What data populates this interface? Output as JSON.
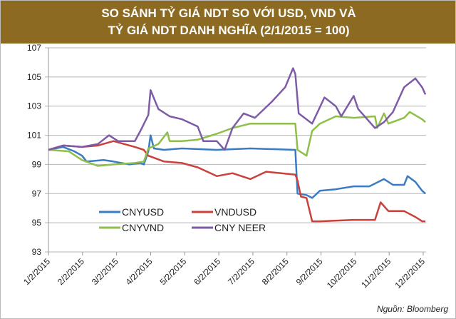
{
  "title_line1": "SO SÁNH TỶ GIÁ NDT SO VỚI USD, VND VÀ",
  "title_line2": "TỶ GIÁ NDT DANH NGHĨA (2/1/2015 = 100)",
  "source": "Nguồn: Bloomberg",
  "chart_data": {
    "type": "line",
    "ylim": [
      93,
      107
    ],
    "yticks": [
      "93",
      "95",
      "97",
      "99",
      "101",
      "103",
      "105",
      "107"
    ],
    "xlim": [
      "2015-01-02",
      "2015-12-04"
    ],
    "xtick_labels": [
      "1/2/2015",
      "2/2/2015",
      "3/2/2015",
      "4/2/2015",
      "5/2/2015",
      "6/2/2015",
      "7/2/2015",
      "8/2/2015",
      "9/2/2015",
      "10/2/2015",
      "11/2/2015",
      "12/2/2015"
    ],
    "grid": true,
    "legend_position": "bottom-left",
    "series": [
      {
        "name": "CNYUSD",
        "color": "#3a7cc4",
        "points": [
          [
            "2015-01-02",
            100
          ],
          [
            "2015-01-15",
            100.2
          ],
          [
            "2015-01-25",
            99.9
          ],
          [
            "2015-02-01",
            99.6
          ],
          [
            "2015-02-05",
            99.2
          ],
          [
            "2015-02-20",
            99.3
          ],
          [
            "2015-03-01",
            99.2
          ],
          [
            "2015-03-15",
            99.0
          ],
          [
            "2015-03-25",
            99.1
          ],
          [
            "2015-03-28",
            99.0
          ],
          [
            "2015-04-01",
            99.9
          ],
          [
            "2015-04-03",
            101.0
          ],
          [
            "2015-04-06",
            100.1
          ],
          [
            "2015-04-15",
            100.0
          ],
          [
            "2015-05-01",
            100.1
          ],
          [
            "2015-06-01",
            100.0
          ],
          [
            "2015-07-01",
            100.1
          ],
          [
            "2015-08-10",
            100.0
          ],
          [
            "2015-08-12",
            97.0
          ],
          [
            "2015-08-20",
            96.9
          ],
          [
            "2015-08-25",
            96.7
          ],
          [
            "2015-09-01",
            97.2
          ],
          [
            "2015-09-15",
            97.3
          ],
          [
            "2015-10-01",
            97.5
          ],
          [
            "2015-10-15",
            97.5
          ],
          [
            "2015-10-28",
            98.0
          ],
          [
            "2015-11-05",
            97.6
          ],
          [
            "2015-11-15",
            97.6
          ],
          [
            "2015-11-18",
            98.2
          ],
          [
            "2015-11-25",
            97.8
          ],
          [
            "2015-12-01",
            97.2
          ],
          [
            "2015-12-04",
            97.0
          ]
        ]
      },
      {
        "name": "VNDUSD",
        "color": "#c9413a",
        "points": [
          [
            "2015-01-02",
            100
          ],
          [
            "2015-01-15",
            100.3
          ],
          [
            "2015-02-01",
            100.2
          ],
          [
            "2015-02-15",
            100.3
          ],
          [
            "2015-03-01",
            100.6
          ],
          [
            "2015-03-20",
            100.2
          ],
          [
            "2015-03-28",
            100.0
          ],
          [
            "2015-04-01",
            99.6
          ],
          [
            "2015-04-15",
            99.2
          ],
          [
            "2015-05-01",
            99.1
          ],
          [
            "2015-05-15",
            98.8
          ],
          [
            "2015-06-01",
            98.2
          ],
          [
            "2015-06-15",
            98.4
          ],
          [
            "2015-07-01",
            98.0
          ],
          [
            "2015-07-15",
            98.5
          ],
          [
            "2015-08-10",
            98.3
          ],
          [
            "2015-08-12",
            97.9
          ],
          [
            "2015-08-15",
            96.8
          ],
          [
            "2015-08-20",
            96.7
          ],
          [
            "2015-08-25",
            95.1
          ],
          [
            "2015-09-01",
            95.1
          ],
          [
            "2015-10-01",
            95.2
          ],
          [
            "2015-10-20",
            95.2
          ],
          [
            "2015-10-25",
            96.4
          ],
          [
            "2015-11-01",
            95.8
          ],
          [
            "2015-11-15",
            95.8
          ],
          [
            "2015-11-25",
            95.4
          ],
          [
            "2015-12-01",
            95.1
          ],
          [
            "2015-12-04",
            95.1
          ]
        ]
      },
      {
        "name": "CNYVND",
        "color": "#8fbf4a",
        "points": [
          [
            "2015-01-02",
            100
          ],
          [
            "2015-01-20",
            99.9
          ],
          [
            "2015-02-01",
            99.3
          ],
          [
            "2015-02-15",
            98.9
          ],
          [
            "2015-03-01",
            99.0
          ],
          [
            "2015-03-20",
            99.1
          ],
          [
            "2015-03-28",
            99.2
          ],
          [
            "2015-04-01",
            100.1
          ],
          [
            "2015-04-10",
            100.4
          ],
          [
            "2015-04-18",
            101.2
          ],
          [
            "2015-04-20",
            100.6
          ],
          [
            "2015-05-01",
            100.6
          ],
          [
            "2015-05-15",
            100.7
          ],
          [
            "2015-06-01",
            101.1
          ],
          [
            "2015-06-15",
            101.5
          ],
          [
            "2015-07-01",
            101.8
          ],
          [
            "2015-07-15",
            101.8
          ],
          [
            "2015-08-10",
            101.8
          ],
          [
            "2015-08-12",
            100.0
          ],
          [
            "2015-08-20",
            99.6
          ],
          [
            "2015-08-25",
            101.3
          ],
          [
            "2015-09-01",
            101.8
          ],
          [
            "2015-09-15",
            102.3
          ],
          [
            "2015-10-01",
            102.2
          ],
          [
            "2015-10-20",
            102.3
          ],
          [
            "2015-10-22",
            101.5
          ],
          [
            "2015-10-28",
            102.5
          ],
          [
            "2015-11-01",
            101.8
          ],
          [
            "2015-11-15",
            102.2
          ],
          [
            "2015-11-20",
            102.6
          ],
          [
            "2015-12-01",
            102.1
          ],
          [
            "2015-12-04",
            101.9
          ]
        ]
      },
      {
        "name": "CNY NEER",
        "color": "#7d5ba6",
        "points": [
          [
            "2015-01-02",
            100
          ],
          [
            "2015-01-15",
            100.3
          ],
          [
            "2015-02-01",
            100.2
          ],
          [
            "2015-02-15",
            100.4
          ],
          [
            "2015-02-25",
            101.0
          ],
          [
            "2015-03-05",
            100.6
          ],
          [
            "2015-03-20",
            100.6
          ],
          [
            "2015-03-25",
            101.3
          ],
          [
            "2015-04-01",
            102.4
          ],
          [
            "2015-04-03",
            104.1
          ],
          [
            "2015-04-10",
            102.8
          ],
          [
            "2015-04-20",
            102.3
          ],
          [
            "2015-05-01",
            102.1
          ],
          [
            "2015-05-15",
            101.6
          ],
          [
            "2015-05-20",
            100.6
          ],
          [
            "2015-06-01",
            100.6
          ],
          [
            "2015-06-08",
            100.0
          ],
          [
            "2015-06-15",
            101.5
          ],
          [
            "2015-06-25",
            102.5
          ],
          [
            "2015-07-05",
            102.2
          ],
          [
            "2015-07-20",
            103.3
          ],
          [
            "2015-08-01",
            104.3
          ],
          [
            "2015-08-08",
            105.6
          ],
          [
            "2015-08-10",
            105.2
          ],
          [
            "2015-08-13",
            102.5
          ],
          [
            "2015-08-25",
            101.8
          ],
          [
            "2015-09-05",
            103.6
          ],
          [
            "2015-09-15",
            103.0
          ],
          [
            "2015-09-20",
            102.3
          ],
          [
            "2015-10-01",
            103.7
          ],
          [
            "2015-10-05",
            102.8
          ],
          [
            "2015-10-20",
            101.5
          ],
          [
            "2015-10-28",
            101.9
          ],
          [
            "2015-11-05",
            102.6
          ],
          [
            "2015-11-15",
            104.3
          ],
          [
            "2015-11-25",
            104.9
          ],
          [
            "2015-12-01",
            104.3
          ],
          [
            "2015-12-04",
            103.8
          ]
        ]
      }
    ]
  }
}
